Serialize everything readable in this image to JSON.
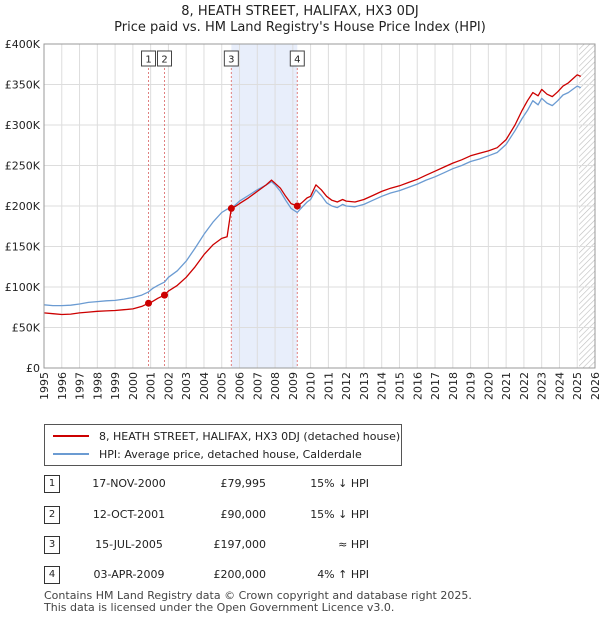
{
  "chart_data": {
    "type": "line",
    "title": "8, HEATH STREET, HALIFAX, HX3 0DJ",
    "subtitle": "Price paid vs. HM Land Registry's House Price Index (HPI)",
    "xlim": [
      1995,
      2026
    ],
    "ylim": [
      0,
      400000
    ],
    "y_ticks": [
      0,
      50000,
      100000,
      150000,
      200000,
      250000,
      300000,
      350000,
      400000
    ],
    "y_tick_labels": [
      "£0",
      "£50K",
      "£100K",
      "£150K",
      "£200K",
      "£250K",
      "£300K",
      "£350K",
      "£400K"
    ],
    "x_ticks": [
      1995,
      1996,
      1997,
      1998,
      1999,
      2000,
      2001,
      2002,
      2003,
      2004,
      2005,
      2006,
      2007,
      2008,
      2009,
      2010,
      2011,
      2012,
      2013,
      2014,
      2015,
      2016,
      2017,
      2018,
      2019,
      2020,
      2021,
      2022,
      2023,
      2024,
      2025,
      2026
    ],
    "x_tick_labels": [
      "1995",
      "1996",
      "1997",
      "1998",
      "1999",
      "2000",
      "2001",
      "2002",
      "2003",
      "2004",
      "2005",
      "2006",
      "2007",
      "2008",
      "2009",
      "2010",
      "2011",
      "2012",
      "2013",
      "2014",
      "2015",
      "2016",
      "2017",
      "2018",
      "2019",
      "2020",
      "2021",
      "2022",
      "2023",
      "2024",
      "2025",
      "2026"
    ],
    "grid": true,
    "shaded_periods": [
      [
        2005.54,
        2009.25
      ]
    ],
    "hatched_from": 2025.1,
    "series": [
      {
        "name": "8, HEATH STREET, HALIFAX, HX3 0DJ (detached house)",
        "color": "#cc0000",
        "x": [
          1995.0,
          1995.5,
          1996.0,
          1996.5,
          1997.0,
          1997.5,
          1998.0,
          1998.5,
          1999.0,
          1999.5,
          2000.0,
          2000.5,
          2000.88,
          2001.1,
          2001.4,
          2001.78,
          2002.0,
          2002.5,
          2003.0,
          2003.5,
          2004.0,
          2004.5,
          2005.0,
          2005.3,
          2005.54,
          2005.8,
          2006.0,
          2006.5,
          2007.0,
          2007.5,
          2007.8,
          2008.0,
          2008.3,
          2008.6,
          2008.9,
          2009.25,
          2009.5,
          2009.8,
          2010.0,
          2010.3,
          2010.6,
          2010.9,
          2011.2,
          2011.5,
          2011.8,
          2012.0,
          2012.5,
          2013.0,
          2013.5,
          2014.0,
          2014.5,
          2015.0,
          2015.5,
          2016.0,
          2016.5,
          2017.0,
          2017.5,
          2018.0,
          2018.5,
          2019.0,
          2019.5,
          2020.0,
          2020.5,
          2021.0,
          2021.5,
          2021.9,
          2022.2,
          2022.5,
          2022.8,
          2023.0,
          2023.3,
          2023.6,
          2023.9,
          2024.2,
          2024.5,
          2024.8,
          2025.0,
          2025.2
        ],
        "values": [
          68000,
          67000,
          66000,
          66500,
          68000,
          69000,
          70000,
          70500,
          71000,
          72000,
          73000,
          76000,
          79995,
          82000,
          86000,
          90000,
          95000,
          102000,
          112000,
          125000,
          140000,
          152000,
          160000,
          162000,
          197000,
          200000,
          203000,
          210000,
          218000,
          226000,
          232000,
          228000,
          222000,
          212000,
          203000,
          200000,
          204000,
          210000,
          212000,
          226000,
          220000,
          212000,
          207000,
          205000,
          208000,
          206000,
          205000,
          208000,
          213000,
          218000,
          222000,
          225000,
          229000,
          233000,
          238000,
          243000,
          248000,
          253000,
          257000,
          262000,
          265000,
          268000,
          272000,
          282000,
          300000,
          318000,
          330000,
          340000,
          336000,
          344000,
          338000,
          335000,
          341000,
          348000,
          352000,
          358000,
          362000,
          360000
        ]
      },
      {
        "name": "HPI: Average price, detached house, Calderdale",
        "color": "#6b9bd2",
        "x": [
          1995.0,
          1995.5,
          1996.0,
          1996.5,
          1997.0,
          1997.5,
          1998.0,
          1998.5,
          1999.0,
          1999.5,
          2000.0,
          2000.5,
          2000.88,
          2001.1,
          2001.4,
          2001.78,
          2002.0,
          2002.5,
          2003.0,
          2003.5,
          2004.0,
          2004.5,
          2005.0,
          2005.3,
          2005.54,
          2005.8,
          2006.0,
          2006.5,
          2007.0,
          2007.5,
          2007.8,
          2008.0,
          2008.3,
          2008.6,
          2008.9,
          2009.25,
          2009.5,
          2009.8,
          2010.0,
          2010.3,
          2010.6,
          2010.9,
          2011.2,
          2011.5,
          2011.8,
          2012.0,
          2012.5,
          2013.0,
          2013.5,
          2014.0,
          2014.5,
          2015.0,
          2015.5,
          2016.0,
          2016.5,
          2017.0,
          2017.5,
          2018.0,
          2018.5,
          2019.0,
          2019.5,
          2020.0,
          2020.5,
          2021.0,
          2021.5,
          2021.9,
          2022.2,
          2022.5,
          2022.8,
          2023.0,
          2023.3,
          2023.6,
          2023.9,
          2024.2,
          2024.5,
          2024.8,
          2025.0,
          2025.2
        ],
        "values": [
          78000,
          77000,
          77000,
          77500,
          79000,
          81000,
          82000,
          83000,
          83500,
          85000,
          87000,
          90000,
          94000,
          98000,
          102000,
          106000,
          112000,
          120000,
          132000,
          148000,
          165000,
          180000,
          192000,
          196000,
          197000,
          202000,
          206000,
          213000,
          220000,
          226000,
          230000,
          226000,
          218000,
          207000,
          197000,
          192000,
          198000,
          205000,
          208000,
          220000,
          213000,
          204000,
          200000,
          198000,
          202000,
          200000,
          199000,
          202000,
          207000,
          212000,
          216000,
          219000,
          223000,
          227000,
          232000,
          236000,
          241000,
          246000,
          250000,
          255000,
          258000,
          262000,
          266000,
          276000,
          293000,
          308000,
          318000,
          330000,
          325000,
          333000,
          327000,
          324000,
          330000,
          337000,
          340000,
          345000,
          348000,
          346000
        ]
      }
    ],
    "sales": [
      {
        "label": "1",
        "x": 2000.88,
        "price": 79995
      },
      {
        "label": "2",
        "x": 2001.78,
        "price": 90000
      },
      {
        "label": "3",
        "x": 2005.54,
        "price": 197000
      },
      {
        "label": "4",
        "x": 2009.25,
        "price": 200000
      }
    ]
  },
  "title_line1": "8, HEATH STREET, HALIFAX, HX3 0DJ",
  "title_line2": "Price paid vs. HM Land Registry's House Price Index (HPI)",
  "legend": {
    "property": "8, HEATH STREET, HALIFAX, HX3 0DJ (detached house)",
    "hpi": "HPI: Average price, detached house, Calderdale",
    "property_color": "#cc0000",
    "hpi_color": "#6b9bd2"
  },
  "transactions": [
    {
      "num": "1",
      "date": "17-NOV-2000",
      "price": "£79,995",
      "hpi": "15% ↓ HPI"
    },
    {
      "num": "2",
      "date": "12-OCT-2001",
      "price": "£90,000",
      "hpi": "15% ↓ HPI"
    },
    {
      "num": "3",
      "date": "15-JUL-2005",
      "price": "£197,000",
      "hpi": "≈ HPI"
    },
    {
      "num": "4",
      "date": "03-APR-2009",
      "price": "£200,000",
      "hpi": "4% ↑ HPI"
    }
  ],
  "footer": {
    "line1": "Contains HM Land Registry data © Crown copyright and database right 2025.",
    "line2": "This data is licensed under the Open Government Licence v3.0."
  }
}
